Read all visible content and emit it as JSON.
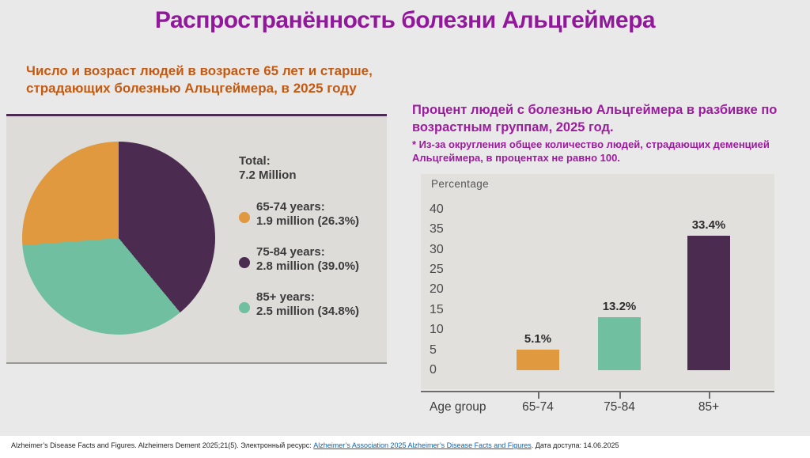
{
  "slide": {
    "title": "Распространённость болезни Альцгеймера",
    "pie_section": {
      "heading": "Число и возраст людей в возрасте 65 лет и старше,\nстрадающих болезнью Альцгеймера, в 2025 году"
    },
    "bar_section": {
      "heading": "Процент людей с болезнью Альцгеймера в разбивке по\nвозрастным группам, 2025 год.",
      "note": "* Из-за округления общее количество людей, страдающих деменцией\nАльцгеймера, в процентах не равно 100."
    },
    "footer": {
      "pre": "Alzheimer’s Disease Facts and Figures. Alzheimers Dement 2025;21(5). Электронный ресурс: ",
      "link": "Alzheimer’s Association 2025 Alzheimer’s Disease Facts and Figures",
      "post": ". Дата доступа: 14.06.2025"
    },
    "colors": {
      "title_purple": "#91189B",
      "heading_orange": "#C45911",
      "heading_purple": "#9C1B9E",
      "slice_orange": "#E0993E",
      "slice_purple": "#4B2B50",
      "slice_teal": "#6FBFA0"
    }
  },
  "chart_data": [
    {
      "type": "pie",
      "title": "Число и возраст людей в возрасте 65 лет и старше, страдающих болезнью Альцгеймера, в 2025 году",
      "total_label": "Total:",
      "total_value": "7.2 Million",
      "slices": [
        {
          "label": "65-74 years",
          "million": 1.9,
          "pct": 26.3,
          "color": "#E0993E",
          "legend_line1": "65-74 years:",
          "legend_line2": "1.9 million (26.3%)"
        },
        {
          "label": "75-84 years",
          "million": 2.8,
          "pct": 39.0,
          "color": "#4B2B50",
          "legend_line1": "75-84 years:",
          "legend_line2": "2.8 million (39.0%)"
        },
        {
          "label": "85+ years",
          "million": 2.5,
          "pct": 34.8,
          "color": "#6FBFA0",
          "legend_line1": "85+ years:",
          "legend_line2": "2.5 million (34.8%)"
        }
      ],
      "draw_order": [
        1,
        2,
        0
      ],
      "start": "top",
      "direction": "clockwise",
      "legend_position": "right"
    },
    {
      "type": "bar",
      "title": "Процент людей с болезнью Альцгеймера в разбивке по возрастным группам, 2025 год.",
      "ylabel": "Percentage",
      "xlabel": "Age group",
      "categories": [
        "65-74",
        "75-84",
        "85+"
      ],
      "values": [
        5.1,
        13.2,
        33.4
      ],
      "value_labels": [
        "5.1%",
        "13.2%",
        "33.4%"
      ],
      "colors": [
        "#E0993E",
        "#6FBFA0",
        "#4B2B50"
      ],
      "yticks": [
        0,
        5,
        10,
        15,
        20,
        25,
        30,
        35,
        40
      ],
      "ylim": [
        0,
        40
      ],
      "grid": false,
      "legend": "none"
    }
  ]
}
